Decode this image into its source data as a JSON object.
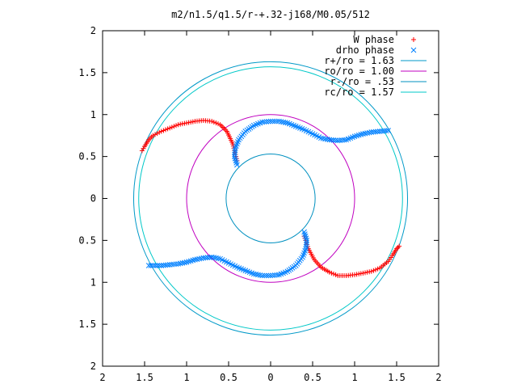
{
  "chart_data": {
    "type": "scatter",
    "title": "m2/n1.5/q1.5/r-+.32-j168/M0.05/512",
    "xlim": [
      -2,
      2
    ],
    "ylim": [
      -2,
      2
    ],
    "x_ticks": [
      -2,
      -1.5,
      -1,
      -0.5,
      0,
      0.5,
      1,
      1.5,
      2
    ],
    "y_ticks": [
      -2,
      -1.5,
      -1,
      -0.5,
      0,
      0.5,
      1,
      1.5,
      2
    ],
    "x_tick_labels": [
      "2",
      "1.5",
      "1",
      "0.5",
      "0",
      "0.5",
      "1",
      "1.5",
      "2"
    ],
    "y_tick_labels": [
      "2",
      "1.5",
      "1",
      "0.5",
      "0",
      "0.5",
      "1",
      "1.5",
      "2"
    ],
    "grid": false,
    "legend_position": "top-right",
    "legend": [
      {
        "label": "W phase",
        "marker": "+",
        "color": "#ff0000"
      },
      {
        "label": "drho phase",
        "marker": "x",
        "color": "#0080ff"
      },
      {
        "label": "r+/ro = 1.63",
        "line": true,
        "color": "#0099c8"
      },
      {
        "label": "ro/ro = 1.00",
        "line": true,
        "color": "#c000c0"
      },
      {
        "label": "r-/ro = .53",
        "line": true,
        "color": "#0090c0"
      },
      {
        "label": "rc/ro = 1.57",
        "line": true,
        "color": "#00c8c8"
      }
    ],
    "circles": [
      {
        "name": "r+/ro",
        "radius": 1.63,
        "color": "#0099c8"
      },
      {
        "name": "ro/ro",
        "radius": 1.0,
        "color": "#c000c0"
      },
      {
        "name": "r-/ro",
        "radius": 0.53,
        "color": "#0090c0"
      },
      {
        "name": "rc/ro",
        "radius": 1.57,
        "color": "#00c8c8"
      }
    ],
    "series": [
      {
        "name": "W phase",
        "marker": "+",
        "color": "#ff0000",
        "paths": [
          [
            [
              -1.53,
              0.57
            ],
            [
              -1.5,
              0.62
            ],
            [
              -1.45,
              0.7
            ],
            [
              -1.4,
              0.75
            ],
            [
              -1.3,
              0.8
            ],
            [
              -1.2,
              0.84
            ],
            [
              -1.1,
              0.88
            ],
            [
              -1.0,
              0.9
            ],
            [
              -0.9,
              0.92
            ],
            [
              -0.8,
              0.93
            ],
            [
              -0.7,
              0.92
            ],
            [
              -0.6,
              0.88
            ],
            [
              -0.52,
              0.8
            ],
            [
              -0.45,
              0.65
            ],
            [
              -0.4,
              0.45
            ]
          ],
          [
            [
              0.4,
              -0.45
            ],
            [
              0.45,
              -0.6
            ],
            [
              0.52,
              -0.73
            ],
            [
              0.6,
              -0.82
            ],
            [
              0.7,
              -0.88
            ],
            [
              0.8,
              -0.92
            ],
            [
              0.9,
              -0.92
            ],
            [
              1.0,
              -0.91
            ],
            [
              1.1,
              -0.89
            ],
            [
              1.2,
              -0.87
            ],
            [
              1.3,
              -0.83
            ],
            [
              1.4,
              -0.75
            ],
            [
              1.45,
              -0.68
            ],
            [
              1.5,
              -0.6
            ],
            [
              1.53,
              -0.57
            ]
          ]
        ]
      },
      {
        "name": "drho phase",
        "marker": "x",
        "color": "#0080ff",
        "paths": [
          [
            [
              -0.4,
              0.4
            ],
            [
              -0.43,
              0.5
            ],
            [
              -0.42,
              0.6
            ],
            [
              -0.38,
              0.7
            ],
            [
              -0.3,
              0.8
            ],
            [
              -0.2,
              0.87
            ],
            [
              -0.1,
              0.91
            ],
            [
              0.0,
              0.92
            ],
            [
              0.1,
              0.92
            ],
            [
              0.2,
              0.9
            ],
            [
              0.3,
              0.86
            ],
            [
              0.4,
              0.82
            ],
            [
              0.5,
              0.77
            ],
            [
              0.6,
              0.72
            ],
            [
              0.7,
              0.7
            ],
            [
              0.8,
              0.69
            ],
            [
              0.9,
              0.7
            ],
            [
              1.0,
              0.74
            ],
            [
              1.1,
              0.77
            ],
            [
              1.2,
              0.79
            ],
            [
              1.3,
              0.8
            ],
            [
              1.4,
              0.81
            ]
          ],
          [
            [
              0.4,
              -0.4
            ],
            [
              0.43,
              -0.5
            ],
            [
              0.42,
              -0.6
            ],
            [
              0.38,
              -0.7
            ],
            [
              0.3,
              -0.8
            ],
            [
              0.2,
              -0.87
            ],
            [
              0.1,
              -0.91
            ],
            [
              0.0,
              -0.92
            ],
            [
              -0.1,
              -0.92
            ],
            [
              -0.2,
              -0.9
            ],
            [
              -0.3,
              -0.86
            ],
            [
              -0.4,
              -0.82
            ],
            [
              -0.5,
              -0.77
            ],
            [
              -0.6,
              -0.72
            ],
            [
              -0.7,
              -0.7
            ],
            [
              -0.8,
              -0.71
            ],
            [
              -0.9,
              -0.73
            ],
            [
              -1.0,
              -0.76
            ],
            [
              -1.1,
              -0.78
            ],
            [
              -1.2,
              -0.79
            ],
            [
              -1.3,
              -0.8
            ],
            [
              -1.4,
              -0.8
            ],
            [
              -1.45,
              -0.8
            ]
          ]
        ]
      }
    ]
  }
}
